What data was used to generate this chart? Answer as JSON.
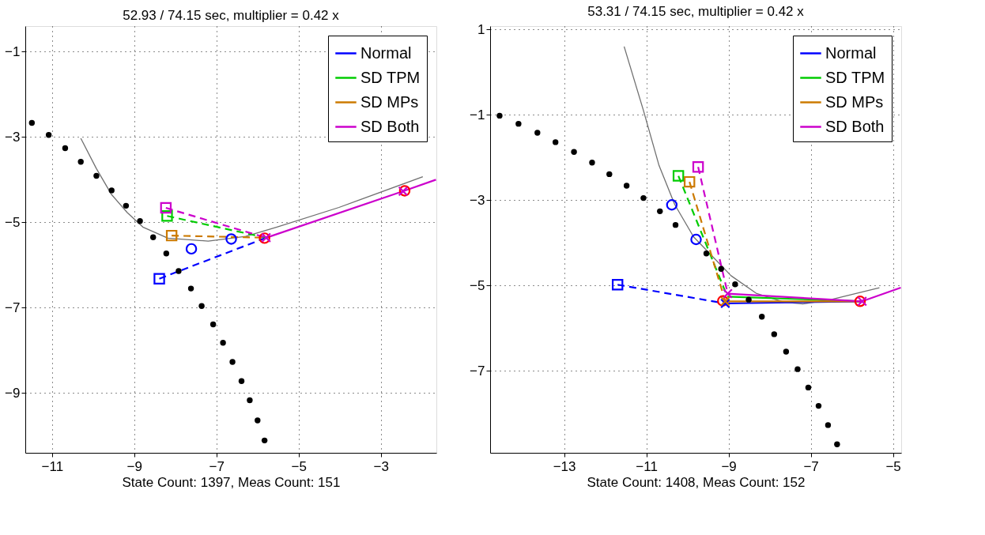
{
  "chart_data": [
    {
      "type": "line",
      "title": "52.93 / 74.15 sec, multiplier = 0.42 x",
      "xlabel": "State Count: 1397, Meas Count: 151",
      "xlim": [
        -11.65,
        -1.65
      ],
      "ylim": [
        -10.4,
        -0.4
      ],
      "xticks": [
        -11,
        -9,
        -7,
        -5,
        -3
      ],
      "yticks": [
        -1,
        -3,
        -5,
        -7,
        -9
      ],
      "grid": true,
      "legend": "top right",
      "series": [
        {
          "type": "line",
          "color": "#707070",
          "line_style": "solid",
          "x": [
            -10.3,
            -9.92,
            -9.55,
            -9.17,
            -8.79,
            -8.18,
            -7.2,
            -6.29,
            -5.53,
            -4.02,
            -1.98
          ],
          "values": [
            -3.03,
            -3.74,
            -4.35,
            -4.77,
            -5.11,
            -5.37,
            -5.44,
            -5.33,
            -5.11,
            -4.65,
            -3.93
          ]
        },
        {
          "type": "line",
          "name": "Normal",
          "color": "#0000ff",
          "line_style": "dashed",
          "x": [
            -8.39,
            -5.79
          ],
          "values": [
            -6.32,
            -5.36
          ]
        },
        {
          "type": "line",
          "name": "SD TPM",
          "color": "#00cc00",
          "line_style": "dashed",
          "x": [
            -8.2,
            -5.79
          ],
          "values": [
            -4.85,
            -5.36
          ]
        },
        {
          "type": "line",
          "name": "SD MPs",
          "color": "#cc7a00",
          "line_style": "dashed",
          "x": [
            -8.09,
            -5.79
          ],
          "values": [
            -5.31,
            -5.36
          ]
        },
        {
          "type": "line",
          "name": "SD Both",
          "color": "#cc00cc",
          "line_style": "dashed",
          "x": [
            -8.23,
            -5.79
          ],
          "values": [
            -4.66,
            -5.36
          ]
        },
        {
          "type": "line",
          "color": "#cc00cc",
          "line_style": "solid",
          "x": [
            -5.79,
            -2.46,
            -1.66
          ],
          "values": [
            -5.36,
            -4.27,
            -4.0
          ]
        },
        {
          "type": "scatter",
          "color": "#000000",
          "marker": "circle",
          "x": [
            -11.49,
            -11.08,
            -10.68,
            -10.3,
            -9.92,
            -9.55,
            -9.2,
            -8.86,
            -8.54,
            -8.22,
            -7.92,
            -7.62,
            -7.36,
            -7.08,
            -6.84,
            -6.61,
            -6.39,
            -6.19,
            -6.0,
            -5.83
          ],
          "values": [
            -2.67,
            -2.95,
            -3.26,
            -3.58,
            -3.91,
            -4.25,
            -4.61,
            -4.97,
            -5.35,
            -5.73,
            -6.14,
            -6.55,
            -6.96,
            -7.39,
            -7.82,
            -8.27,
            -8.72,
            -9.17,
            -9.64,
            -10.11
          ]
        },
        {
          "type": "scatter",
          "color": "#0000ff",
          "marker": "circle",
          "x": [
            -7.61
          ],
          "values": [
            -5.62
          ]
        },
        {
          "type": "scatter",
          "color": "#0000ff",
          "marker": "circle",
          "x": [
            -6.64
          ],
          "values": [
            -5.39
          ]
        },
        {
          "type": "scatter",
          "color": "#ff0000",
          "marker": "circle",
          "x": [
            -5.83,
            -2.42
          ],
          "values": [
            -5.37,
            -4.26
          ]
        },
        {
          "type": "scatter",
          "color": "#0000ff",
          "marker": "square",
          "x": [
            -8.39
          ],
          "values": [
            -6.32
          ]
        },
        {
          "type": "scatter",
          "color": "#00cc00",
          "marker": "square",
          "x": [
            -8.2
          ],
          "values": [
            -4.85
          ]
        },
        {
          "type": "scatter",
          "color": "#cc7a00",
          "marker": "square",
          "x": [
            -8.09
          ],
          "values": [
            -5.31
          ]
        },
        {
          "type": "scatter",
          "color": "#cc00cc",
          "marker": "square",
          "x": [
            -8.23
          ],
          "values": [
            -4.66
          ]
        },
        {
          "type": "scatter",
          "color": "#cc00cc",
          "marker": "cross",
          "x": [
            -5.79,
            -2.46
          ],
          "values": [
            -5.36,
            -4.27
          ]
        }
      ]
    },
    {
      "type": "line",
      "title": "53.31 / 74.15 sec, multiplier = 0.42 x",
      "xlabel": "State Count: 1408, Meas Count: 152",
      "xlim": [
        -14.8,
        -4.8
      ],
      "ylim": [
        -8.92,
        1.08
      ],
      "xticks": [
        -13,
        -11,
        -9,
        -7,
        -5
      ],
      "yticks": [
        1,
        -1,
        -3,
        -5,
        -7
      ],
      "grid": true,
      "legend": "top right",
      "series": [
        {
          "type": "line",
          "color": "#707070",
          "line_style": "solid",
          "x": [
            -11.54,
            -11.07,
            -10.69,
            -10.31,
            -9.85,
            -9.4,
            -8.94,
            -8.33,
            -7.65,
            -7.19,
            -6.51,
            -5.33
          ],
          "values": [
            0.6,
            -0.9,
            -2.19,
            -3.1,
            -3.86,
            -4.31,
            -4.77,
            -5.18,
            -5.39,
            -5.43,
            -5.33,
            -5.05
          ]
        },
        {
          "type": "line",
          "color": "#0000ff",
          "line_style": "dashed",
          "x": [
            -11.7,
            -9.08
          ],
          "values": [
            -4.98,
            -5.42
          ]
        },
        {
          "type": "line",
          "color": "#00cc00",
          "line_style": "dashed",
          "x": [
            -10.22,
            -9.03
          ],
          "values": [
            -2.43,
            -5.26
          ]
        },
        {
          "type": "line",
          "color": "#cc7a00",
          "line_style": "dashed",
          "x": [
            -9.95,
            -9.08
          ],
          "values": [
            -2.57,
            -5.37
          ]
        },
        {
          "type": "line",
          "color": "#cc00cc",
          "line_style": "dashed",
          "x": [
            -9.74,
            -9.02
          ],
          "values": [
            -2.22,
            -5.19
          ]
        },
        {
          "type": "line",
          "name": "Normal",
          "color": "#0000ff",
          "line_style": "solid",
          "x": [
            -9.08,
            -5.75
          ],
          "values": [
            -5.42,
            -5.37
          ]
        },
        {
          "type": "line",
          "name": "SD TPM",
          "color": "#00cc00",
          "line_style": "solid",
          "x": [
            -9.03,
            -5.75
          ],
          "values": [
            -5.26,
            -5.37
          ]
        },
        {
          "type": "line",
          "name": "SD MPs",
          "color": "#cc7a00",
          "line_style": "solid",
          "x": [
            -9.08,
            -5.75
          ],
          "values": [
            -5.37,
            -5.37
          ]
        },
        {
          "type": "line",
          "name": "SD Both",
          "color": "#cc00cc",
          "line_style": "solid",
          "x": [
            -9.02,
            -5.75,
            -4.81
          ],
          "values": [
            -5.19,
            -5.37,
            -5.05
          ]
        },
        {
          "type": "scatter",
          "color": "#000000",
          "marker": "circle",
          "x": [
            -14.57,
            -14.11,
            -13.65,
            -13.21,
            -12.76,
            -12.32,
            -11.9,
            -11.48,
            -11.07,
            -10.67,
            -10.29,
            -9.54,
            -9.18,
            -8.84,
            -8.51,
            -8.19,
            -7.89,
            -7.6,
            -7.32,
            -7.06,
            -6.81,
            -6.58,
            -6.36
          ],
          "values": [
            -1.02,
            -1.21,
            -1.42,
            -1.64,
            -1.87,
            -2.12,
            -2.39,
            -2.66,
            -2.95,
            -3.26,
            -3.58,
            -4.25,
            -4.61,
            -4.97,
            -5.33,
            -5.73,
            -6.14,
            -6.55,
            -6.96,
            -7.39,
            -7.82,
            -8.27,
            -8.72
          ]
        },
        {
          "type": "scatter",
          "color": "#0000ff",
          "marker": "circle",
          "x": [
            -10.38
          ],
          "values": [
            -3.11
          ]
        },
        {
          "type": "scatter",
          "color": "#0000ff",
          "marker": "circle",
          "x": [
            -9.79
          ],
          "values": [
            -3.92
          ]
        },
        {
          "type": "scatter",
          "color": "#ff0000",
          "marker": "circle",
          "x": [
            -9.14,
            -5.8
          ],
          "values": [
            -5.36,
            -5.37
          ]
        },
        {
          "type": "scatter",
          "color": "#0000ff",
          "marker": "square",
          "x": [
            -11.7
          ],
          "values": [
            -4.98
          ]
        },
        {
          "type": "scatter",
          "color": "#00cc00",
          "marker": "square",
          "x": [
            -10.22
          ],
          "values": [
            -2.43
          ]
        },
        {
          "type": "scatter",
          "color": "#cc7a00",
          "marker": "square",
          "x": [
            -9.95
          ],
          "values": [
            -2.57
          ]
        },
        {
          "type": "scatter",
          "color": "#cc00cc",
          "marker": "square",
          "x": [
            -9.74
          ],
          "values": [
            -2.22
          ]
        },
        {
          "type": "scatter",
          "color": "#0000ff",
          "marker": "cross",
          "x": [
            -9.08
          ],
          "values": [
            -5.42
          ]
        },
        {
          "type": "scatter",
          "color": "#cc7a00",
          "marker": "cross",
          "x": [
            -9.08
          ],
          "values": [
            -5.37
          ]
        },
        {
          "type": "scatter",
          "color": "#cc00cc",
          "marker": "cross",
          "x": [
            -9.02,
            -5.75
          ],
          "values": [
            -5.19,
            -5.37
          ]
        }
      ]
    }
  ]
}
